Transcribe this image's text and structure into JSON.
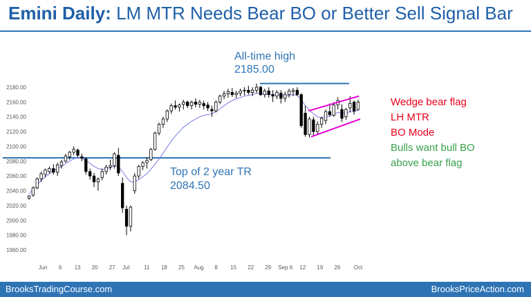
{
  "header": {
    "title_bold": "Emini Daily:",
    "title_rest": "LM MTR Needs Bear BO or Better Sell Signal Bar"
  },
  "footer": {
    "left": "BrooksTradingCourse.com",
    "right": "BrooksPriceAction.com"
  },
  "colors": {
    "brand_blue": "#2e74b5",
    "red": "#e8001c",
    "green": "#37a04b",
    "magenta": "#e600d7",
    "moving_average": "#7a7ae6"
  },
  "annotations": {
    "ath_label": "All-time high",
    "ath_value": "2185.00",
    "tr_label": "Top of 2 year TR",
    "tr_value": "2084.50",
    "notes": [
      {
        "text": "Wedge bear flag",
        "color": "red"
      },
      {
        "text": "LH MTR",
        "color": "red"
      },
      {
        "text": "BO Mode",
        "color": "red"
      },
      {
        "text": "Bulls want bull BO",
        "color": "green"
      },
      {
        "text": "above bear flag",
        "color": "green"
      }
    ]
  },
  "chart_data": {
    "type": "candlestick",
    "ylim": [
      1950,
      2190
    ],
    "y_ticks": [
      "2180.00",
      "2160.00",
      "2140.00",
      "2120.00",
      "2100.00",
      "2080.00",
      "2060.00",
      "2040.00",
      "2020.00",
      "2000.00",
      "1980.00",
      "1960.00"
    ],
    "x_tick_labels": [
      "Jun",
      "6",
      "13",
      "20",
      "27",
      "Jul",
      "11",
      "18",
      "25",
      "Aug",
      "8",
      "15",
      "22",
      "29",
      "Sep 6",
      "12",
      "19",
      "26",
      "Oct"
    ],
    "horizontal_lines": [
      2185.0,
      2084.5
    ],
    "wedge": {
      "upper": [
        2148,
        2168
      ],
      "lower": [
        2113,
        2137
      ]
    },
    "bars": [
      [
        2030,
        2034,
        2028,
        2033
      ],
      [
        2034,
        2046,
        2032,
        2044
      ],
      [
        2044,
        2058,
        2042,
        2056
      ],
      [
        2056,
        2066,
        2052,
        2063
      ],
      [
        2062,
        2070,
        2058,
        2068
      ],
      [
        2066,
        2073,
        2063,
        2070
      ],
      [
        2070,
        2076,
        2062,
        2065
      ],
      [
        2065,
        2078,
        2060,
        2075
      ],
      [
        2074,
        2082,
        2070,
        2079
      ],
      [
        2080,
        2090,
        2078,
        2087
      ],
      [
        2086,
        2094,
        2082,
        2092
      ],
      [
        2092,
        2100,
        2088,
        2096
      ],
      [
        2095,
        2097,
        2085,
        2088
      ],
      [
        2086,
        2090,
        2080,
        2084
      ],
      [
        2083,
        2085,
        2062,
        2066
      ],
      [
        2066,
        2070,
        2055,
        2060
      ],
      [
        2060,
        2064,
        2045,
        2052
      ],
      [
        2052,
        2058,
        2040,
        2056
      ],
      [
        2058,
        2070,
        2054,
        2066
      ],
      [
        2066,
        2075,
        2062,
        2072
      ],
      [
        2072,
        2082,
        2068,
        2074
      ],
      [
        2074,
        2092,
        2070,
        2090
      ],
      [
        2088,
        2098,
        2060,
        2064
      ],
      [
        2050,
        2058,
        2010,
        2017
      ],
      [
        2015,
        2020,
        1980,
        1992
      ],
      [
        1992,
        2020,
        1985,
        2018
      ],
      [
        2040,
        2064,
        2036,
        2060
      ],
      [
        2060,
        2075,
        2056,
        2073
      ],
      [
        2073,
        2080,
        2068,
        2078
      ],
      [
        2078,
        2085,
        2070,
        2081
      ],
      [
        2082,
        2098,
        2080,
        2096
      ],
      [
        2096,
        2120,
        2094,
        2118
      ],
      [
        2118,
        2132,
        2115,
        2130
      ],
      [
        2130,
        2140,
        2125,
        2137
      ],
      [
        2137,
        2150,
        2133,
        2148
      ],
      [
        2148,
        2158,
        2144,
        2155
      ],
      [
        2155,
        2162,
        2150,
        2153
      ],
      [
        2153,
        2158,
        2147,
        2156
      ],
      [
        2157,
        2163,
        2150,
        2160
      ],
      [
        2160,
        2162,
        2152,
        2155
      ],
      [
        2155,
        2162,
        2150,
        2160
      ],
      [
        2160,
        2165,
        2153,
        2157
      ],
      [
        2157,
        2163,
        2152,
        2160
      ],
      [
        2158,
        2162,
        2150,
        2155
      ],
      [
        2156,
        2160,
        2148,
        2152
      ],
      [
        2150,
        2155,
        2140,
        2148
      ],
      [
        2148,
        2162,
        2146,
        2160
      ],
      [
        2160,
        2170,
        2157,
        2168
      ],
      [
        2168,
        2175,
        2164,
        2171
      ],
      [
        2171,
        2178,
        2166,
        2174
      ],
      [
        2173,
        2179,
        2167,
        2170
      ],
      [
        2170,
        2175,
        2165,
        2172
      ],
      [
        2172,
        2178,
        2168,
        2175
      ],
      [
        2175,
        2180,
        2169,
        2176
      ],
      [
        2176,
        2182,
        2170,
        2173
      ],
      [
        2173,
        2180,
        2168,
        2176
      ],
      [
        2176,
        2185,
        2172,
        2180
      ],
      [
        2180,
        2182,
        2168,
        2170
      ],
      [
        2170,
        2178,
        2166,
        2175
      ],
      [
        2175,
        2180,
        2166,
        2170
      ],
      [
        2170,
        2176,
        2160,
        2168
      ],
      [
        2168,
        2176,
        2164,
        2173
      ],
      [
        2172,
        2176,
        2158,
        2165
      ],
      [
        2165,
        2174,
        2160,
        2170
      ],
      [
        2170,
        2178,
        2166,
        2175
      ],
      [
        2174,
        2179,
        2168,
        2176
      ],
      [
        2176,
        2180,
        2168,
        2170
      ],
      [
        2170,
        2172,
        2125,
        2128
      ],
      [
        2145,
        2155,
        2113,
        2116
      ],
      [
        2116,
        2140,
        2112,
        2137
      ],
      [
        2136,
        2140,
        2115,
        2120
      ],
      [
        2120,
        2134,
        2117,
        2130
      ],
      [
        2130,
        2140,
        2125,
        2138
      ],
      [
        2135,
        2150,
        2130,
        2147
      ],
      [
        2147,
        2158,
        2140,
        2143
      ],
      [
        2142,
        2160,
        2140,
        2156
      ],
      [
        2156,
        2166,
        2150,
        2162
      ],
      [
        2150,
        2157,
        2133,
        2138
      ],
      [
        2140,
        2152,
        2136,
        2150
      ],
      [
        2152,
        2168,
        2146,
        2158
      ],
      [
        2160,
        2162,
        2143,
        2148
      ],
      [
        2150,
        2163,
        2148,
        2160
      ]
    ],
    "moving_average": [
      2036,
      2042,
      2048,
      2054,
      2059,
      2063,
      2067,
      2070,
      2073,
      2077,
      2080,
      2083,
      2085,
      2084,
      2081,
      2077,
      2073,
      2070,
      2069,
      2070,
      2071,
      2074,
      2072,
      2066,
      2058,
      2052,
      2052,
      2055,
      2059,
      2063,
      2069,
      2076,
      2083,
      2091,
      2099,
      2107,
      2114,
      2120,
      2126,
      2130,
      2134,
      2137,
      2140,
      2142,
      2143,
      2144,
      2147,
      2151,
      2155,
      2159,
      2162,
      2164,
      2166,
      2168,
      2169,
      2170,
      2172,
      2171,
      2171,
      2170,
      2170,
      2170,
      2169,
      2168,
      2169,
      2170,
      2169,
      2163,
      2155,
      2149,
      2144,
      2140,
      2139,
      2140,
      2141,
      2143,
      2146,
      2145,
      2145,
      2147,
      2147,
      2149
    ]
  }
}
